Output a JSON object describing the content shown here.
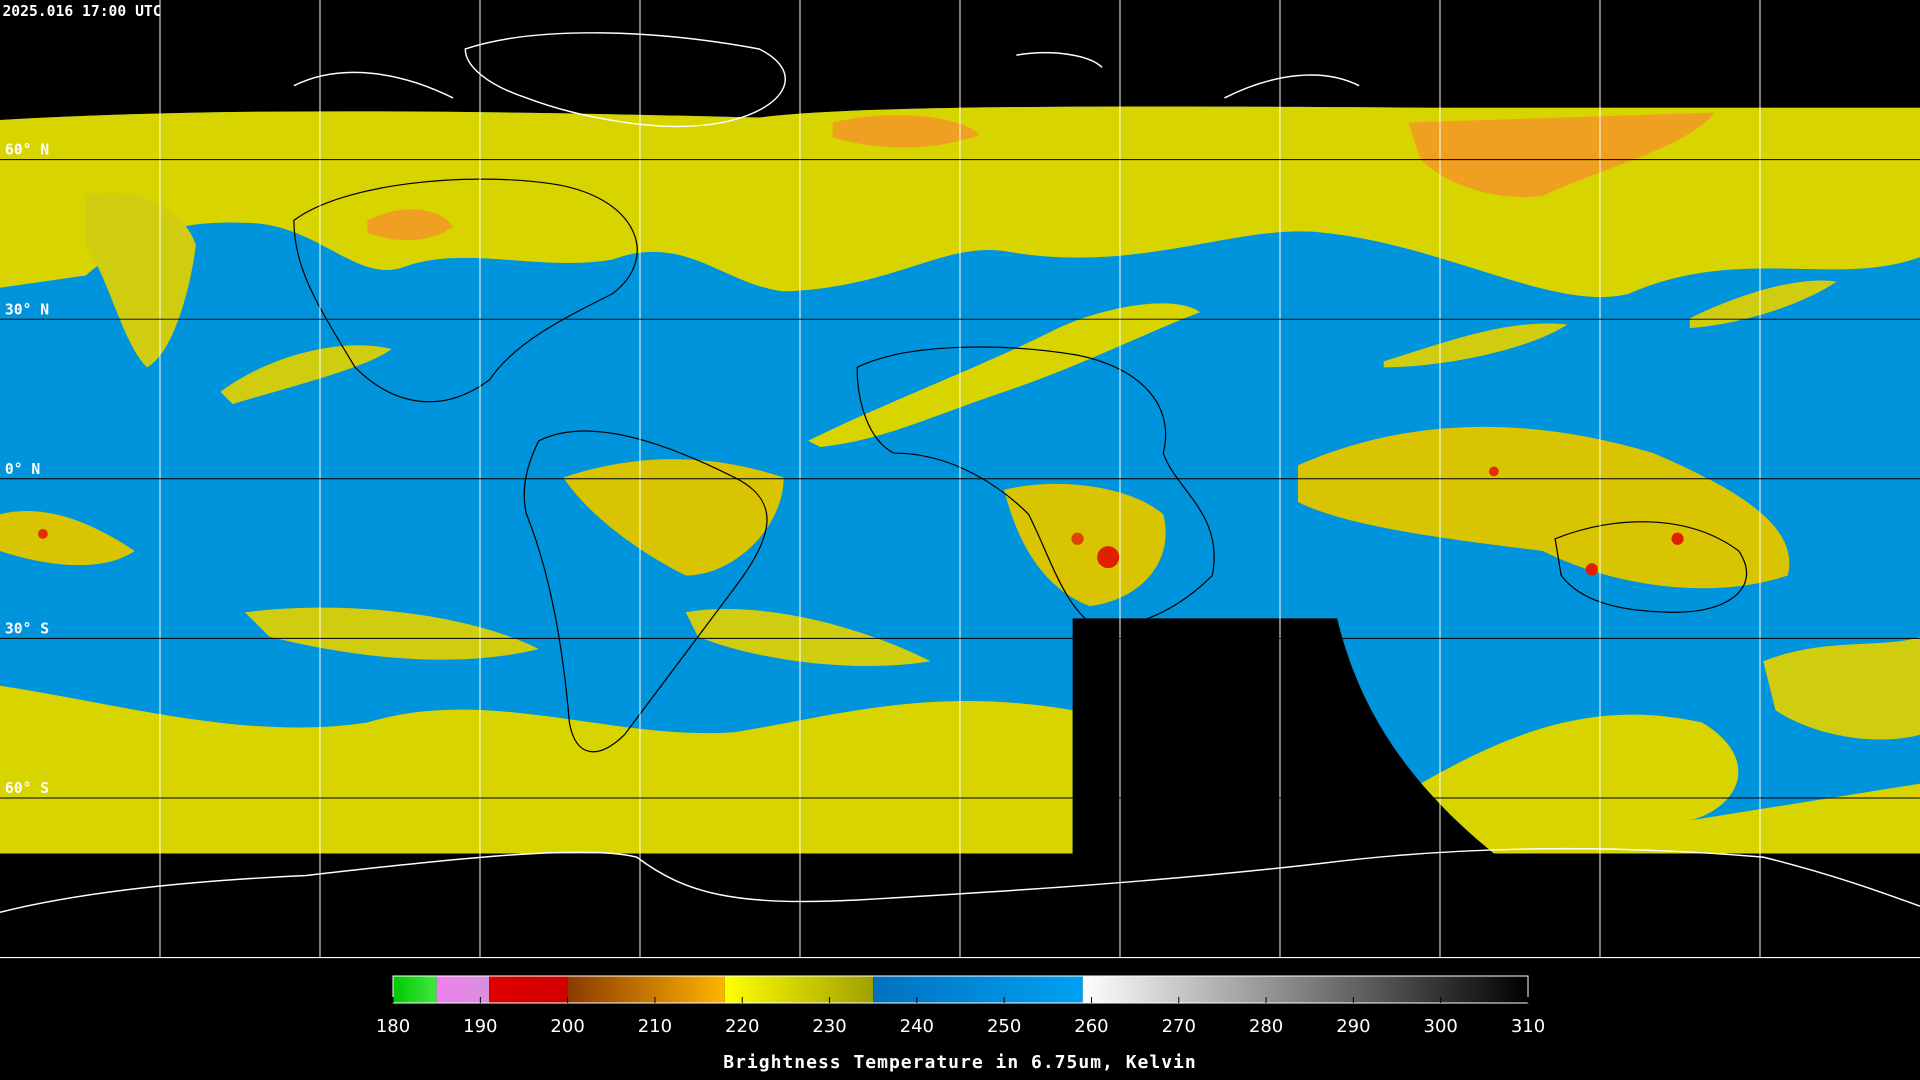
{
  "map": {
    "timestamp": "2025.016 17:00 UTC",
    "latitudes": [
      {
        "value": 60,
        "label": "60° N"
      },
      {
        "value": 30,
        "label": "30° N"
      },
      {
        "value": 0,
        "label": "0° N"
      },
      {
        "value": -30,
        "label": "30° S"
      },
      {
        "value": -60,
        "label": "60° S"
      }
    ]
  },
  "colorbar": {
    "title": "Brightness Temperature in 6.75um, Kelvin",
    "range": [
      180,
      310
    ],
    "ticks": [
      180,
      190,
      200,
      210,
      220,
      230,
      240,
      250,
      260,
      270,
      280,
      290,
      300,
      310
    ],
    "segments": [
      {
        "from": 180,
        "to": 185,
        "colors": [
          "#00c800",
          "#40e840"
        ]
      },
      {
        "from": 185,
        "to": 191,
        "colors": [
          "#f080f0",
          "#d890d8"
        ]
      },
      {
        "from": 191,
        "to": 200,
        "colors": [
          "#e00000",
          "#d00000"
        ]
      },
      {
        "from": 200,
        "to": 218,
        "colors": [
          "#8a3a00",
          "#ffb400"
        ]
      },
      {
        "from": 218,
        "to": 235,
        "colors": [
          "#ffff00",
          "#a0a000"
        ]
      },
      {
        "from": 235,
        "to": 259,
        "colors": [
          "#0072c0",
          "#00a0f0"
        ]
      },
      {
        "from": 259,
        "to": 310,
        "colors": [
          "#ffffff",
          "#000000"
        ]
      }
    ]
  }
}
